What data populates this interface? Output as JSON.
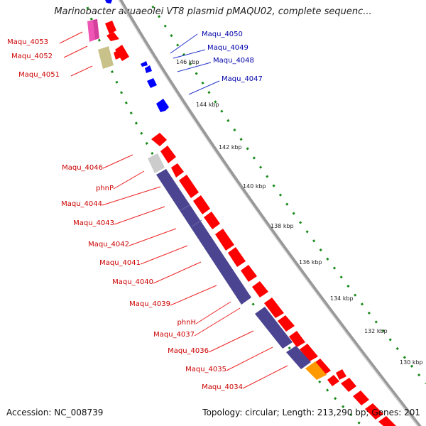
{
  "title": "Marinobacter aquaeolei VT8 plasmid pMAQU02, complete sequenc...",
  "accession_text": "Accession: NC_008739",
  "topology_text": "Topology: circular; Length: 213,290 bp; Genes: 201",
  "colors": {
    "forward": "#ff0000",
    "reverse": "#0000ff",
    "purple": "#4b4491",
    "grey": "#cccccc",
    "khaki": "#c8c28a",
    "pink": "#ef55b4",
    "orange": "#ff9900",
    "label_red": "#cc0000",
    "label_blue": "#0000aa",
    "tick_green": "#1a8a1a",
    "backbone": "#808080"
  },
  "kbp_ticks": [
    "146 kbp",
    "144 kbp",
    "142 kbp",
    "140 kbp",
    "138 kbp",
    "136 kbp",
    "134 kbp",
    "132 kbp",
    "130 kbp"
  ],
  "genes_inner": [
    "Maqu_4053",
    "Maqu_4052",
    "Maqu_4051",
    "Maqu_4046",
    "phnP",
    "Maqu_4044",
    "Maqu_4043",
    "Maqu_4042",
    "Maqu_4041",
    "Maqu_4040",
    "Maqu_4039",
    "phnH",
    "Maqu_4037",
    "Maqu_4036",
    "Maqu_4035",
    "Maqu_4034"
  ],
  "genes_outer": [
    "Maqu_4050",
    "Maqu_4049",
    "Maqu_4048",
    "Maqu_4047"
  ]
}
